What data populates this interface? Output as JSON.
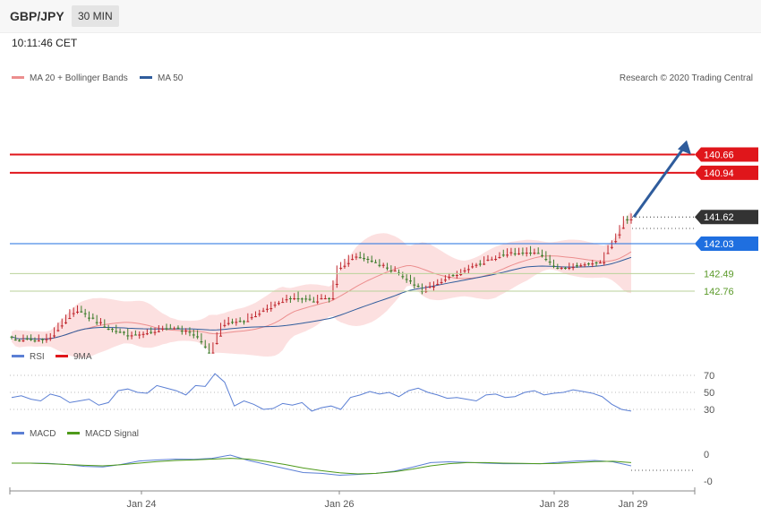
{
  "header": {
    "symbol": "GBP/JPY",
    "timeframe": "30 MIN",
    "time": "10:11:46 CET"
  },
  "legend_main": [
    {
      "label": "MA 20 + Bollinger Bands",
      "color": "#ec8e8e"
    },
    {
      "label": "MA 50",
      "color": "#2f5c9c"
    }
  ],
  "copyright": "Research © 2020 Trading Central",
  "legend_rsi": [
    {
      "label": "RSI",
      "color": "#5b7fd4"
    },
    {
      "label": "9MA",
      "color": "#e0161b"
    }
  ],
  "legend_macd": [
    {
      "label": "MACD",
      "color": "#5b7fd4"
    },
    {
      "label": "MACD Signal",
      "color": "#4e9a1a"
    }
  ],
  "colors": {
    "up": "#3d7d2c",
    "down": "#c0262d",
    "band": "#fbd6d6",
    "ma20": "#ec8e8e",
    "ma50": "#2f5c9c",
    "arrow": "#2f5c9c"
  },
  "chart_data": [
    {
      "type": "candlestick",
      "title": "GBP/JPY",
      "x_ticks": [
        "Jan 24",
        "Jan 26",
        "Jan 28",
        "Jan 29"
      ],
      "levels": [
        {
          "value": 142.76,
          "label": "142.76",
          "kind": "resistance"
        },
        {
          "value": 142.49,
          "label": "142.49",
          "kind": "resistance"
        },
        {
          "value": 142.03,
          "label": "142.03",
          "kind": "pivot"
        },
        {
          "value": 141.62,
          "label": "141.62",
          "kind": "last"
        },
        {
          "value": 140.94,
          "label": "140.94",
          "kind": "support"
        },
        {
          "value": 140.66,
          "label": "140.66",
          "kind": "support"
        }
      ],
      "ylim": [
        140.5,
        144.0
      ],
      "close_anchors": [
        [
          0,
          143.48
        ],
        [
          5,
          143.52
        ],
        [
          10,
          143.45
        ],
        [
          14,
          143.15
        ],
        [
          17,
          143.05
        ],
        [
          20,
          143.15
        ],
        [
          26,
          143.35
        ],
        [
          30,
          143.42
        ],
        [
          35,
          143.38
        ],
        [
          40,
          143.32
        ],
        [
          45,
          143.35
        ],
        [
          48,
          143.45
        ],
        [
          51,
          143.7
        ],
        [
          54,
          143.3
        ],
        [
          55,
          143.25
        ],
        [
          60,
          143.2
        ],
        [
          65,
          143.05
        ],
        [
          70,
          142.9
        ],
        [
          73,
          142.85
        ],
        [
          78,
          142.9
        ],
        [
          82,
          142.85
        ],
        [
          84,
          142.4
        ],
        [
          89,
          142.2
        ],
        [
          93,
          142.3
        ],
        [
          97,
          142.4
        ],
        [
          103,
          142.6
        ],
        [
          106,
          142.75
        ],
        [
          110,
          142.6
        ],
        [
          114,
          142.5
        ],
        [
          118,
          142.4
        ],
        [
          122,
          142.3
        ],
        [
          126,
          142.2
        ],
        [
          131,
          142.15
        ],
        [
          135,
          142.15
        ],
        [
          138,
          142.25
        ],
        [
          141,
          142.4
        ],
        [
          146,
          142.35
        ],
        [
          152,
          142.3
        ],
        [
          154,
          142.1
        ],
        [
          156,
          141.9
        ],
        [
          158,
          141.65
        ],
        [
          160,
          141.62
        ]
      ],
      "candle_count": 161,
      "annotation": "bearish arrow toward 140.66"
    },
    {
      "type": "line",
      "name": "RSI",
      "ylim": [
        0,
        100
      ],
      "y_ticks": [
        70,
        50,
        30
      ],
      "series": [
        {
          "name": "RSI",
          "values": [
            44,
            46,
            42,
            40,
            48,
            45,
            38,
            40,
            42,
            35,
            38,
            52,
            54,
            50,
            49,
            58,
            55,
            52,
            47,
            58,
            57,
            72,
            62,
            34,
            40,
            36,
            30,
            31,
            37,
            35,
            38,
            28,
            32,
            34,
            30,
            44,
            47,
            51,
            48,
            50,
            45,
            52,
            55,
            50,
            47,
            43,
            44,
            42,
            40,
            47,
            48,
            44,
            45,
            50,
            52,
            47,
            49,
            50,
            53,
            51,
            49,
            45,
            36,
            30,
            28
          ]
        }
      ]
    },
    {
      "type": "line",
      "name": "MACD",
      "y_ticks": [
        "0",
        "-0"
      ],
      "series": [
        {
          "name": "MACD",
          "values": [
            0.0,
            0.0,
            -0.01,
            -0.05,
            -0.12,
            -0.14,
            -0.05,
            0.08,
            0.12,
            0.15,
            0.14,
            0.18,
            0.3,
            0.1,
            -0.05,
            -0.2,
            -0.35,
            -0.38,
            -0.45,
            -0.42,
            -0.38,
            -0.3,
            -0.15,
            0.02,
            0.05,
            0.03,
            0.0,
            -0.02,
            -0.02,
            -0.02,
            0.03,
            0.08,
            0.1,
            0.05,
            -0.1
          ]
        },
        {
          "name": "MACD Signal",
          "values": [
            0.0,
            0.0,
            -0.02,
            -0.05,
            -0.08,
            -0.1,
            -0.06,
            0.0,
            0.06,
            0.1,
            0.12,
            0.15,
            0.18,
            0.15,
            0.06,
            -0.05,
            -0.18,
            -0.28,
            -0.36,
            -0.4,
            -0.38,
            -0.32,
            -0.22,
            -0.1,
            -0.02,
            0.02,
            0.02,
            0.0,
            -0.01,
            -0.02,
            -0.01,
            0.02,
            0.06,
            0.07,
            0.02
          ]
        }
      ]
    }
  ]
}
